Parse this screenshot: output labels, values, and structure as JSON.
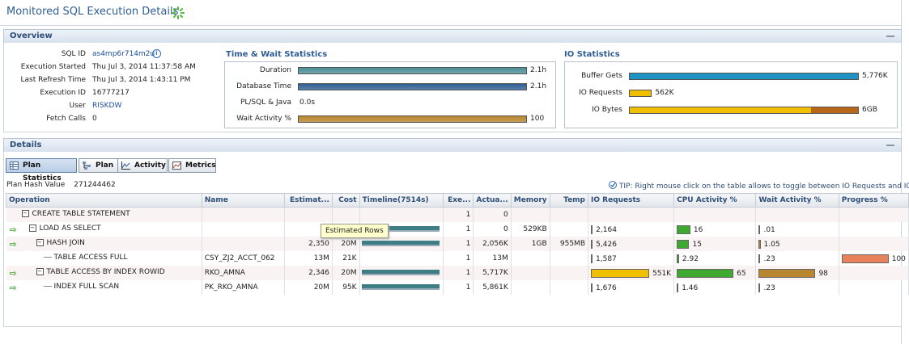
{
  "page": {
    "title": "Monitored SQL Execution Details"
  },
  "overview": {
    "header": "Overview",
    "fields": [
      {
        "label": "SQL ID",
        "value": "as4mp6r714m2u",
        "link": true,
        "info": true
      },
      {
        "label": "Execution Started",
        "value": "Thu Jul 3, 2014 11:37:58 AM"
      },
      {
        "label": "Last Refresh Time",
        "value": "Thu Jul 3, 2014 1:43:11 PM"
      },
      {
        "label": "Execution ID",
        "value": "16777217"
      },
      {
        "label": "User",
        "value": "RISKDW",
        "link": true
      },
      {
        "label": "Fetch Calls",
        "value": "0"
      }
    ],
    "time_wait": {
      "title": "Time & Wait Statistics",
      "rows": [
        {
          "label": "Duration",
          "value": "2.1h",
          "fill": 1.0,
          "color": "#4a8f95"
        },
        {
          "label": "Database Time",
          "value": "2.1h",
          "fill": 1.0,
          "color": "#2f5f94"
        },
        {
          "label": "PL/SQL & Java",
          "value": "0.0s",
          "fill": 0,
          "color": ""
        },
        {
          "label": "Wait Activity %",
          "value": "100",
          "fill": 1.0,
          "color": "#b8862e"
        }
      ]
    },
    "io": {
      "title": "IO Statistics",
      "rows": [
        {
          "label": "Buffer Gets",
          "value": "5,776K",
          "fill": 1.0,
          "color": "#1e93c4"
        },
        {
          "label": "IO Requests",
          "value": "562K",
          "fill": 0.1,
          "color": "#f0c000"
        },
        {
          "label": "IO Bytes",
          "value": "6GB",
          "fill": 1.0,
          "color": "#f0c000"
        }
      ]
    }
  },
  "details": {
    "header": "Details",
    "tabs": [
      {
        "label": "Plan Statistics",
        "icon": "grid-icon"
      },
      {
        "label": "Plan",
        "icon": "tree-icon"
      },
      {
        "label": "Activity",
        "icon": "activity-chart-icon"
      },
      {
        "label": "Metrics",
        "icon": "metrics-chart-icon"
      }
    ],
    "plan_hash_label": "Plan Hash Value",
    "plan_hash_value": "271244462",
    "tip": "TIP: Right mouse click on the table allows to toggle between IO Requests and IO Bytes",
    "columns": [
      "Operation",
      "Name",
      "Estimat...",
      "Cost",
      "Timeline(7514s)",
      "Exe...",
      "Actua...",
      "Memory",
      "Temp",
      "IO Requests",
      "CPU Activity %",
      "Wait Activity %",
      "Progress %"
    ],
    "rows": [
      {
        "arrow": false,
        "indent": 1,
        "toggle": "⊟",
        "op": "CREATE TABLE STATEMENT",
        "name": "",
        "est": "",
        "cost": "",
        "tl": 0,
        "exe": "1",
        "act": "0",
        "mem": "",
        "temp": "",
        "io": "",
        "io_fill": 0,
        "cpu": "",
        "cpu_fill": 0,
        "wait": "",
        "wait_fill": 0,
        "prog": "",
        "prog_fill": 0
      },
      {
        "arrow": true,
        "indent": 2,
        "toggle": "⊟",
        "op": "LOAD AS SELECT",
        "name": "",
        "est": "",
        "cost": "",
        "tl": 0.98,
        "exe": "1",
        "act": "0",
        "mem": "529KB",
        "temp": "",
        "io": "2,164",
        "io_fill": 0.03,
        "cpu": "16",
        "cpu_fill": 0.24,
        "wait": ".01",
        "wait_fill": 0.02,
        "prog": "",
        "prog_fill": 0
      },
      {
        "arrow": true,
        "indent": 3,
        "toggle": "⊟",
        "op": "HASH JOIN",
        "name": "",
        "est": "2,350",
        "cost": "20M",
        "tl": 0.98,
        "exe": "1",
        "act": "2,056K",
        "mem": "1GB",
        "temp": "955MB",
        "io": "5,426",
        "io_fill": 0.03,
        "cpu": "15",
        "cpu_fill": 0.22,
        "wait": "1.05",
        "wait_fill": 0.03,
        "prog": "",
        "prog_fill": 0
      },
      {
        "arrow": false,
        "indent": 4,
        "toggle": "",
        "op": "TABLE ACCESS FULL",
        "name": "CSY_ZJ2_ACCT_062",
        "est": "13M",
        "cost": "21K",
        "tl": 0,
        "exe": "1",
        "act": "13M",
        "mem": "",
        "temp": "",
        "io": "1,587",
        "io_fill": 0.02,
        "cpu": "2.92",
        "cpu_fill": 0.04,
        "wait": ".23",
        "wait_fill": 0.02,
        "prog": "100",
        "prog_fill": 1.0
      },
      {
        "arrow": true,
        "indent": 3,
        "toggle": "⊟",
        "op": "TABLE ACCESS BY INDEX ROWID",
        "name": "RKO_AMNA",
        "est": "2,346",
        "cost": "20M",
        "tl": 0.98,
        "exe": "1",
        "act": "5,717K",
        "mem": "",
        "temp": "",
        "io": "551K",
        "io_fill": 1.0,
        "cpu": "65",
        "cpu_fill": 1.0,
        "wait": "98",
        "wait_fill": 1.0,
        "prog": "",
        "prog_fill": 0
      },
      {
        "arrow": true,
        "indent": 4,
        "toggle": "",
        "op": "INDEX FULL SCAN",
        "name": "PK_RKO_AMNA",
        "est": "20M",
        "cost": "95K",
        "tl": 0.98,
        "exe": "1",
        "act": "5,861K",
        "mem": "",
        "temp": "",
        "io": "1,676",
        "io_fill": 0.02,
        "cpu": "1.46",
        "cpu_fill": 0.03,
        "wait": ".23",
        "wait_fill": 0.02,
        "prog": "",
        "prog_fill": 0
      }
    ],
    "tooltip": "Estimated Rows"
  },
  "colors": {
    "io_bar": "#f0c000",
    "cpu_bar": "#3fa830",
    "wait_bar": "#b8862e",
    "progress_bar": "#e8825a",
    "timeline_bar": "#3e7d83"
  }
}
